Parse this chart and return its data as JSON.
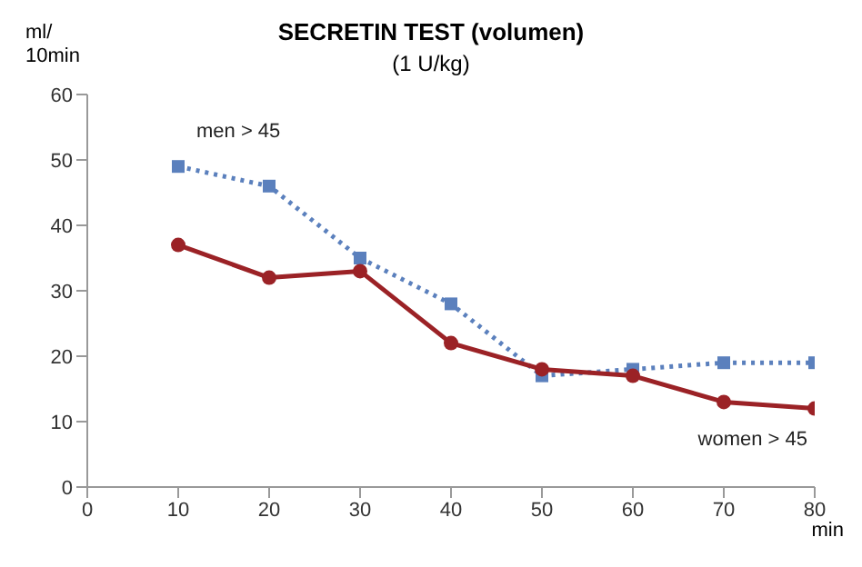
{
  "chart_data": {
    "type": "line",
    "title": "SECRETIN TEST (volumen)",
    "subtitle": "(1 U/kg)",
    "xlabel": "min",
    "ylabel": "ml/\n10min",
    "x": [
      10,
      20,
      30,
      40,
      50,
      60,
      70,
      80
    ],
    "series": [
      {
        "name": "men > 45",
        "color": "#5b80bd",
        "values": [
          49,
          46,
          35,
          28,
          17,
          18,
          19,
          19
        ],
        "marker": "square",
        "line_style": "dotted"
      },
      {
        "name": "women > 45",
        "color": "#9b2226",
        "values": [
          37,
          32,
          33,
          22,
          18,
          17,
          13,
          12
        ],
        "marker": "circle",
        "line_style": "solid"
      }
    ],
    "xlim": [
      0,
      80
    ],
    "xticks": [
      0,
      10,
      20,
      30,
      40,
      50,
      60,
      70,
      80
    ],
    "ylim": [
      0,
      60
    ],
    "yticks": [
      0,
      10,
      20,
      30,
      40,
      50,
      60
    ],
    "grid": false,
    "legend": false
  }
}
